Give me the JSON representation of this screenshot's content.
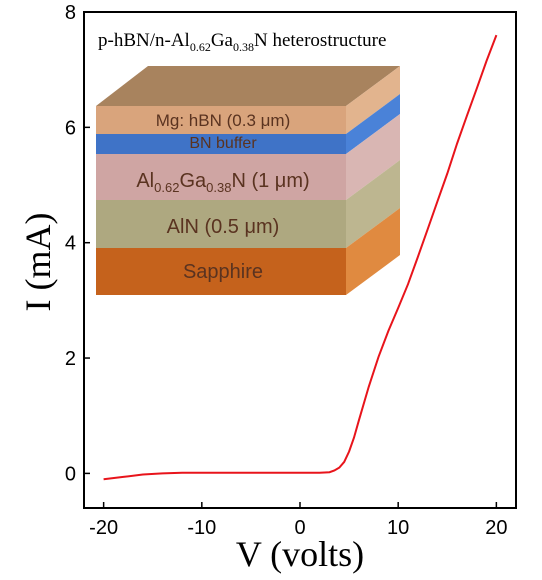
{
  "chart_data": {
    "type": "line",
    "xlabel": "V (volts)",
    "ylabel": "I (mA)",
    "xlim": [
      -22,
      22
    ],
    "ylim": [
      -0.6,
      8
    ],
    "xticks": [
      -20,
      -10,
      0,
      10,
      20
    ],
    "yticks": [
      0,
      2,
      4,
      6,
      8
    ],
    "grid": false,
    "line_color": "#e8141b",
    "series": [
      {
        "x": [
          -20,
          -18,
          -16,
          -14,
          -12,
          -10,
          -8,
          -6,
          -4,
          -2,
          0,
          2,
          3,
          3.5,
          4,
          4.5,
          5,
          5.5,
          6,
          7,
          8,
          9,
          10,
          11,
          12,
          13,
          14,
          15,
          16,
          17,
          18,
          19,
          20
        ],
        "y": [
          -0.1,
          -0.06,
          -0.02,
          0.0,
          0.01,
          0.01,
          0.01,
          0.01,
          0.01,
          0.01,
          0.01,
          0.01,
          0.02,
          0.05,
          0.1,
          0.2,
          0.38,
          0.62,
          0.92,
          1.5,
          2.02,
          2.47,
          2.87,
          3.28,
          3.75,
          4.23,
          4.72,
          5.2,
          5.72,
          6.2,
          6.67,
          7.15,
          7.6
        ]
      }
    ],
    "inset": {
      "title": {
        "pre": "p-hBN/n-Al",
        "sub1": "0.62",
        "mid": "Ga",
        "sub2": "0.38",
        "post": "N heterostructure"
      },
      "layers": [
        {
          "label": "Mg: hBN (0.3 μm)",
          "front": "#d9a47c",
          "side": "#e2b48e"
        },
        {
          "label": "BN buffer",
          "front": "#3f73c7",
          "side": "#4a82d8"
        },
        {
          "label_parts": {
            "pre": "Al",
            "sub1": "0.62",
            "mid": "Ga",
            "sub2": "0.38",
            "post": "N  (1 μm)"
          },
          "front": "#cfa5a3",
          "side": "#d9b6b3"
        },
        {
          "label": "AlN (0.5 μm)",
          "front": "#aea880",
          "side": "#bdb690"
        },
        {
          "label": "Sapphire",
          "front": "#c5621c",
          "side": "#e08a40"
        }
      ],
      "top_color": "#a8835e"
    }
  }
}
